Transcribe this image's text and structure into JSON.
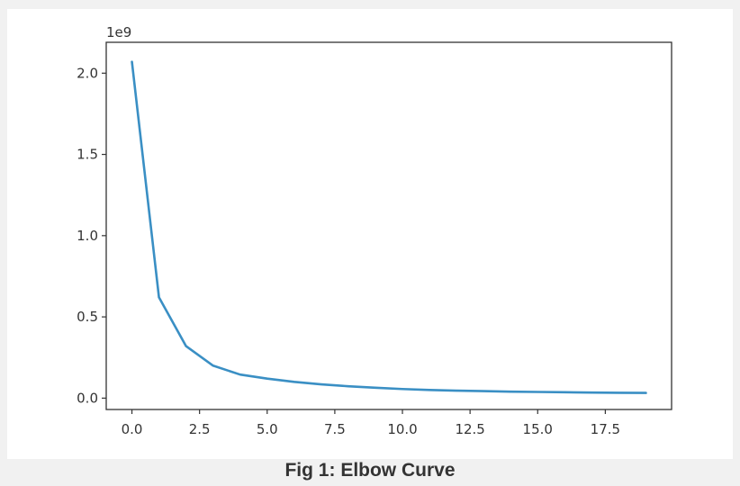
{
  "caption": "Fig 1: Elbow Curve",
  "colors": {
    "line": "#3a8fc4",
    "frame": "#333333",
    "background": "#ffffff"
  },
  "chart_data": {
    "type": "line",
    "title": "",
    "xlabel": "",
    "ylabel": "",
    "y_offset_label": "1e9",
    "grid": false,
    "xlim": [
      -0.95,
      19.95
    ],
    "ylim": [
      -0.07,
      2.19
    ],
    "x_ticks": [
      0,
      2.5,
      5,
      7.5,
      10,
      12.5,
      15,
      17.5
    ],
    "x_tick_labels": [
      "0.0",
      "2.5",
      "5.0",
      "7.5",
      "10.0",
      "12.5",
      "15.0",
      "17.5"
    ],
    "y_ticks": [
      0,
      0.5,
      1,
      1.5,
      2
    ],
    "y_tick_labels": [
      "0.0",
      "0.5",
      "1.0",
      "1.5",
      "2.0"
    ],
    "x": [
      0,
      1,
      2,
      3,
      4,
      5,
      6,
      7,
      8,
      9,
      10,
      11,
      12,
      13,
      14,
      15,
      16,
      17,
      18,
      19
    ],
    "series": [
      {
        "values": [
          2.07,
          0.62,
          0.32,
          0.2,
          0.145,
          0.12,
          0.1,
          0.085,
          0.073,
          0.064,
          0.056,
          0.05,
          0.046,
          0.043,
          0.04,
          0.038,
          0.036,
          0.034,
          0.033,
          0.032
        ]
      }
    ]
  }
}
